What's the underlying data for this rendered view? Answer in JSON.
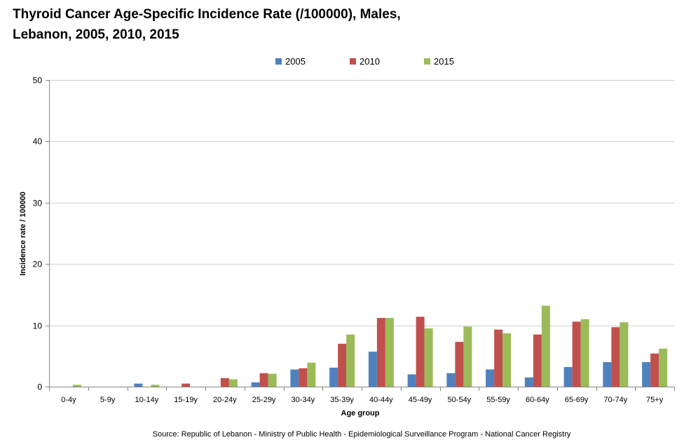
{
  "chart_data": {
    "type": "bar",
    "title": "Thyroid Cancer Age-Specific Incidence Rate (/100000),  Males, Lebanon, 2005, 2010, 2015",
    "title_lines": [
      "Thyroid Cancer Age-Specific Incidence Rate (/100000),  Males,",
      "Lebanon, 2005, 2010, 2015"
    ],
    "xlabel": "Age group",
    "ylabel": "Incidence rate / 100000",
    "ylim": [
      0,
      50
    ],
    "yticks": [
      0,
      10,
      20,
      30,
      40,
      50
    ],
    "grid": true,
    "legend_position": "top",
    "categories": [
      "0-4y",
      "5-9y",
      "10-14y",
      "15-19y",
      "20-24y",
      "25-29y",
      "30-34y",
      "35-39y",
      "40-44y",
      "45-49y",
      "50-54y",
      "55-59y",
      "60-64y",
      "65-69y",
      "70-74y",
      "75+y"
    ],
    "series": [
      {
        "name": "2005",
        "color": "#4f81bd",
        "values": [
          0,
          0,
          0.5,
          0,
          0,
          0.7,
          2.8,
          3.1,
          5.7,
          2.0,
          2.2,
          2.8,
          1.5,
          3.2,
          4.0,
          4.0
        ]
      },
      {
        "name": "2010",
        "color": "#c0504d",
        "values": [
          0,
          0,
          0,
          0.5,
          1.4,
          2.2,
          3.0,
          7.0,
          11.2,
          11.4,
          7.3,
          9.3,
          8.5,
          10.6,
          9.7,
          5.4
        ]
      },
      {
        "name": "2015",
        "color": "#9bbb59",
        "values": [
          0.3,
          0,
          0.3,
          0,
          1.2,
          2.1,
          3.9,
          8.5,
          11.2,
          9.5,
          9.8,
          8.7,
          13.2,
          11.0,
          10.5,
          6.2
        ]
      }
    ],
    "source": "Source: Republic of Lebanon - Ministry of Public Health - Epidemiological Surveillance Program - National Cancer Registry"
  }
}
